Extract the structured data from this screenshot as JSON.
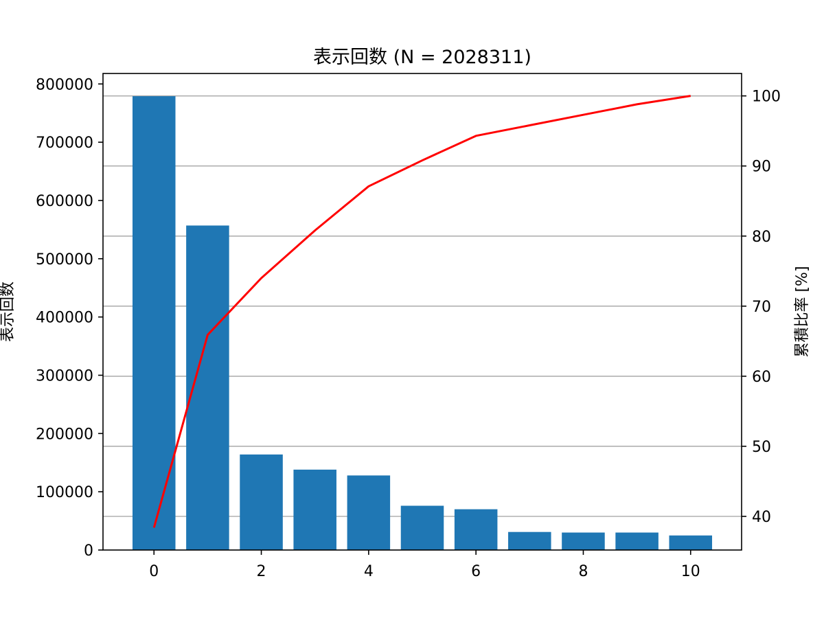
{
  "chart_data": {
    "type": "bar",
    "title": "表示回数 (N = 2028311)",
    "ylabel": "表示回数",
    "y2label": "累積比率 [%]",
    "x": [
      0,
      1,
      2,
      3,
      4,
      5,
      6,
      7,
      8,
      9,
      10
    ],
    "xlim": [
      -0.95,
      10.95
    ],
    "xticks": [
      "0",
      "2",
      "4",
      "6",
      "8",
      "10"
    ],
    "ylim": [
      0,
      818000
    ],
    "yticks": [
      "0",
      "100000",
      "200000",
      "300000",
      "400000",
      "500000",
      "600000",
      "700000",
      "800000"
    ],
    "y2lim": [
      35.2,
      103.2
    ],
    "y2ticks": [
      "40",
      "50",
      "60",
      "70",
      "80",
      "90",
      "100"
    ],
    "grid": "y2-major",
    "series": [
      {
        "kind": "bar",
        "color": "#1f77b4",
        "values": [
          779000,
          557000,
          164000,
          138000,
          128000,
          76000,
          70000,
          31000,
          30000,
          30000,
          25000
        ]
      },
      {
        "kind": "line",
        "axis": "y2",
        "color": "#ff0000",
        "values": [
          38.4,
          65.9,
          74.0,
          80.8,
          87.1,
          90.8,
          94.3,
          95.8,
          97.3,
          98.8,
          100.0
        ]
      }
    ]
  }
}
